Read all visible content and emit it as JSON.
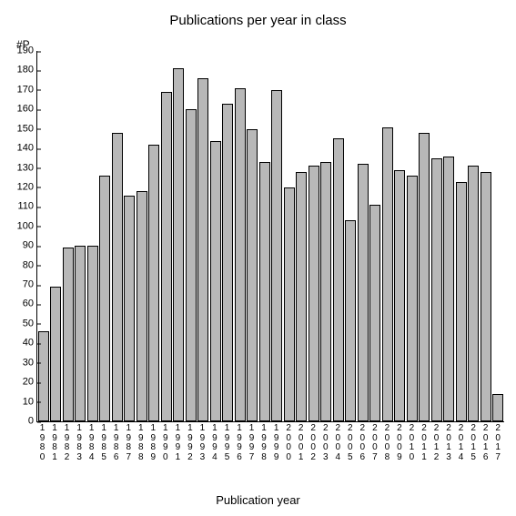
{
  "chart": {
    "type": "bar",
    "title": "Publications per year in class",
    "title_fontsize": 15,
    "y_axis_label": "#P",
    "x_axis_label": "Publication year",
    "label_fontsize": 13,
    "background_color": "#ffffff",
    "axis_color": "#000000",
    "bar_fill": "#b8b8b8",
    "bar_border": "#000000",
    "bar_width_ratio": 0.88,
    "tick_fontsize": 11,
    "xlabel_fontsize": 10,
    "ylim": [
      0,
      190
    ],
    "ytick_step": 10,
    "categories": [
      "1980",
      "1981",
      "1982",
      "1983",
      "1984",
      "1985",
      "1986",
      "1987",
      "1988",
      "1989",
      "1990",
      "1991",
      "1992",
      "1993",
      "1994",
      "1995",
      "1996",
      "1997",
      "1998",
      "1999",
      "2000",
      "2001",
      "2002",
      "2003",
      "2004",
      "2005",
      "2006",
      "2007",
      "2008",
      "2009",
      "2010",
      "2011",
      "2012",
      "2013",
      "2014",
      "2015",
      "2016",
      "2017"
    ],
    "values": [
      46,
      69,
      89,
      90,
      90,
      126,
      148,
      116,
      118,
      142,
      169,
      181,
      160,
      176,
      144,
      163,
      171,
      150,
      133,
      170,
      120,
      128,
      131,
      133,
      145,
      103,
      132,
      111,
      151,
      129,
      126,
      148,
      135,
      136,
      123,
      131,
      128,
      14
    ]
  }
}
